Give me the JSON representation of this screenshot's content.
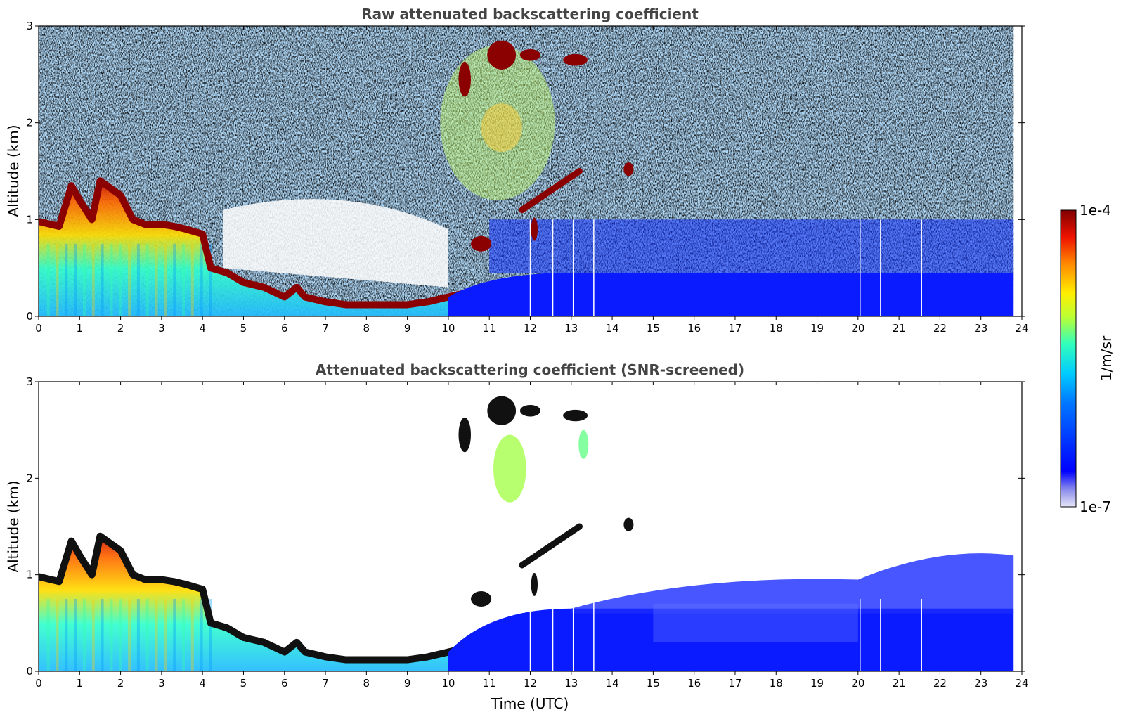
{
  "chart_data": [
    {
      "type": "heatmap",
      "title": "Raw attenuated backscattering coefficient",
      "xlabel": "",
      "ylabel": "Altitude (km)",
      "xlim": [
        0,
        24
      ],
      "ylim": [
        0,
        3
      ],
      "xticks": [
        "0",
        "1",
        "2",
        "3",
        "4",
        "5",
        "6",
        "7",
        "8",
        "9",
        "10",
        "11",
        "12",
        "13",
        "14",
        "15",
        "16",
        "17",
        "18",
        "19",
        "20",
        "21",
        "22",
        "23",
        "24"
      ],
      "yticks": [
        "0",
        "1",
        "2",
        "3"
      ],
      "data_end_time": 23.8,
      "features": {
        "boundary_layer_top": {
          "x": [
            0,
            0.5,
            0.8,
            1.0,
            1.3,
            1.5,
            2.0,
            2.3,
            2.6,
            3.0,
            3.3,
            3.6,
            4.0,
            4.2,
            4.6,
            5.0,
            5.5,
            6.0,
            6.3,
            6.5,
            7.0,
            7.5,
            8.0,
            8.5,
            9.0,
            9.5,
            10.0,
            10.5,
            10.9
          ],
          "y": [
            0.98,
            0.93,
            1.35,
            1.2,
            1.0,
            1.4,
            1.25,
            1.0,
            0.95,
            0.95,
            0.93,
            0.9,
            0.85,
            0.5,
            0.45,
            0.35,
            0.3,
            0.2,
            0.3,
            0.2,
            0.15,
            0.12,
            0.12,
            0.12,
            0.12,
            0.15,
            0.2,
            0.25,
            0.3
          ]
        },
        "cloud_patches": [
          {
            "x": 10.4,
            "y": 2.45,
            "dx": 0.15,
            "dy": 0.18
          },
          {
            "x": 11.3,
            "y": 2.7,
            "dx": 0.35,
            "dy": 0.15
          },
          {
            "x": 12.0,
            "y": 2.7,
            "dx": 0.25,
            "dy": 0.06
          },
          {
            "x": 13.1,
            "y": 2.65,
            "dx": 0.3,
            "dy": 0.06
          },
          {
            "x": 14.4,
            "y": 1.52,
            "dx": 0.12,
            "dy": 0.07
          },
          {
            "x": 10.8,
            "y": 0.75,
            "dx": 0.25,
            "dy": 0.08
          },
          {
            "x": 12.1,
            "y": 0.9,
            "dx": 0.08,
            "dy": 0.12
          }
        ],
        "rising_layer": {
          "x0": 11.8,
          "y0": 1.1,
          "x1": 13.2,
          "y1": 1.5
        },
        "data_gaps_x": [
          12.0,
          12.55,
          13.05,
          13.55,
          20.05,
          20.55,
          21.55
        ]
      }
    },
    {
      "type": "heatmap",
      "title": "Attenuated backscattering coefficient (SNR-screened)",
      "xlabel": "Time (UTC)",
      "ylabel": "Altitude (km)",
      "xlim": [
        0,
        24
      ],
      "ylim": [
        0,
        3
      ],
      "xticks": [
        "0",
        "1",
        "2",
        "3",
        "4",
        "5",
        "6",
        "7",
        "8",
        "9",
        "10",
        "11",
        "12",
        "13",
        "14",
        "15",
        "16",
        "17",
        "18",
        "19",
        "20",
        "21",
        "22",
        "23",
        "24"
      ],
      "yticks": [
        "0",
        "1",
        "2",
        "3"
      ],
      "screened": true
    }
  ],
  "colorbar": {
    "label": "1/m/sr",
    "max_label": "1e-4",
    "min_label": "1e-7",
    "scale": "log",
    "colormap": "jet",
    "colors": [
      "#e6e6f5",
      "#0000ff",
      "#00aaff",
      "#00ffcc",
      "#88ff44",
      "#ffee00",
      "#ff8800",
      "#ee2200",
      "#880000"
    ]
  }
}
